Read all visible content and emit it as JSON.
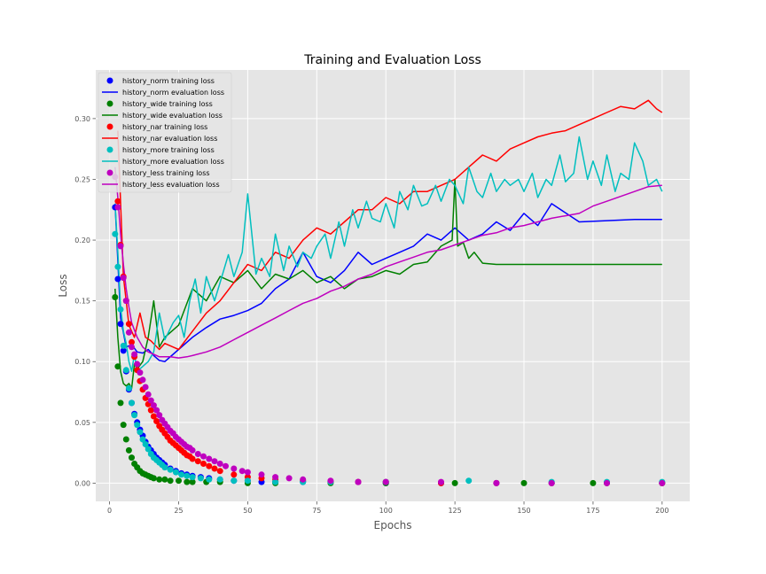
{
  "chart_data": {
    "type": "line",
    "title": "Training and Evaluation Loss",
    "xlabel": "Epochs",
    "ylabel": "Loss",
    "xlim": [
      -5,
      210
    ],
    "ylim": [
      -0.015,
      0.34
    ],
    "xticks": [
      0,
      25,
      50,
      75,
      100,
      125,
      150,
      175,
      200
    ],
    "yticks": [
      0.0,
      0.05,
      0.1,
      0.15,
      0.2,
      0.25,
      0.3
    ],
    "grid": true,
    "legend_position": "top-left",
    "colors": {
      "norm": "#0000ff",
      "wide": "#008000",
      "nar": "#ff0000",
      "more": "#00bfbf",
      "less": "#bf00bf",
      "background": "#e5e5e5",
      "grid": "#ffffff"
    },
    "legend": [
      {
        "label": "history_norm training loss",
        "kind": "marker",
        "color": "#0000ff"
      },
      {
        "label": "history_norm evaluation loss",
        "kind": "line",
        "color": "#0000ff"
      },
      {
        "label": "history_wide training loss",
        "kind": "marker",
        "color": "#008000"
      },
      {
        "label": "history_wide evaluation loss",
        "kind": "line",
        "color": "#008000"
      },
      {
        "label": "history_nar training loss",
        "kind": "marker",
        "color": "#ff0000"
      },
      {
        "label": "history_nar evaluation loss",
        "kind": "line",
        "color": "#ff0000"
      },
      {
        "label": "history_more training loss",
        "kind": "marker",
        "color": "#00bfbf"
      },
      {
        "label": "history_more evaluation loss",
        "kind": "line",
        "color": "#00bfbf"
      },
      {
        "label": "history_less training loss",
        "kind": "marker",
        "color": "#bf00bf"
      },
      {
        "label": "history_less evaluation loss",
        "kind": "line",
        "color": "#bf00bf"
      }
    ],
    "series": [
      {
        "name": "history_norm training loss",
        "kind": "scatter",
        "color": "#0000ff",
        "x": [
          2,
          3,
          4,
          5,
          6,
          7,
          8,
          9,
          10,
          11,
          12,
          13,
          14,
          15,
          16,
          17,
          18,
          19,
          20,
          22,
          24,
          26,
          28,
          30,
          33,
          36,
          40,
          45,
          50,
          55,
          60,
          70,
          80,
          90,
          100,
          120,
          140,
          160,
          180,
          200
        ],
        "y": [
          0.227,
          0.168,
          0.131,
          0.109,
          0.092,
          0.077,
          0.066,
          0.057,
          0.05,
          0.044,
          0.039,
          0.034,
          0.03,
          0.027,
          0.024,
          0.021,
          0.019,
          0.017,
          0.015,
          0.012,
          0.01,
          0.008,
          0.007,
          0.006,
          0.005,
          0.004,
          0.003,
          0.002,
          0.002,
          0.001,
          0.001,
          0.001,
          0.001,
          0.001,
          0.0,
          0.0,
          0.0,
          0.0,
          0.0,
          0.0
        ]
      },
      {
        "name": "history_norm evaluation loss",
        "kind": "line",
        "color": "#0000ff",
        "x": [
          2,
          4,
          6,
          8,
          10,
          12,
          14,
          16,
          18,
          20,
          25,
          30,
          35,
          40,
          45,
          50,
          55,
          60,
          65,
          70,
          75,
          80,
          85,
          90,
          95,
          100,
          105,
          110,
          115,
          120,
          125,
          130,
          135,
          140,
          145,
          150,
          155,
          160,
          170,
          180,
          190,
          200
        ],
        "y": [
          0.23,
          0.136,
          0.112,
          0.114,
          0.108,
          0.107,
          0.11,
          0.105,
          0.101,
          0.1,
          0.11,
          0.12,
          0.128,
          0.135,
          0.138,
          0.142,
          0.148,
          0.16,
          0.168,
          0.19,
          0.17,
          0.165,
          0.175,
          0.19,
          0.18,
          0.185,
          0.19,
          0.195,
          0.205,
          0.2,
          0.21,
          0.2,
          0.205,
          0.215,
          0.208,
          0.222,
          0.212,
          0.23,
          0.215,
          0.216,
          0.217,
          0.217
        ]
      },
      {
        "name": "history_wide training loss",
        "kind": "scatter",
        "color": "#008000",
        "x": [
          2,
          3,
          4,
          5,
          6,
          7,
          8,
          9,
          10,
          11,
          12,
          13,
          14,
          15,
          16,
          18,
          20,
          22,
          25,
          28,
          30,
          35,
          40,
          50,
          60,
          80,
          100,
          125,
          150,
          175,
          200
        ],
        "y": [
          0.153,
          0.096,
          0.066,
          0.048,
          0.036,
          0.027,
          0.021,
          0.016,
          0.013,
          0.01,
          0.008,
          0.007,
          0.006,
          0.005,
          0.004,
          0.003,
          0.003,
          0.002,
          0.002,
          0.001,
          0.001,
          0.001,
          0.001,
          0.0,
          0.0,
          0.0,
          0.0,
          0.0,
          0.0,
          0.0,
          0.0
        ]
      },
      {
        "name": "history_wide evaluation loss",
        "kind": "line",
        "color": "#008000",
        "x": [
          2,
          3,
          4,
          5,
          6,
          7,
          8,
          9,
          10,
          12,
          14,
          16,
          18,
          20,
          25,
          30,
          35,
          40,
          45,
          50,
          55,
          60,
          65,
          70,
          75,
          80,
          85,
          90,
          95,
          100,
          105,
          110,
          115,
          120,
          124,
          125,
          126,
          128,
          130,
          132,
          135,
          140,
          150,
          175,
          200
        ],
        "y": [
          0.16,
          0.12,
          0.092,
          0.082,
          0.08,
          0.082,
          0.078,
          0.098,
          0.094,
          0.1,
          0.12,
          0.15,
          0.112,
          0.12,
          0.13,
          0.16,
          0.15,
          0.17,
          0.165,
          0.175,
          0.16,
          0.172,
          0.168,
          0.175,
          0.165,
          0.17,
          0.16,
          0.168,
          0.17,
          0.175,
          0.172,
          0.18,
          0.182,
          0.195,
          0.2,
          0.25,
          0.195,
          0.198,
          0.185,
          0.19,
          0.181,
          0.18,
          0.18,
          0.18,
          0.18
        ]
      },
      {
        "name": "history_nar training loss",
        "kind": "scatter",
        "color": "#ff0000",
        "x": [
          3,
          4,
          5,
          6,
          7,
          8,
          9,
          10,
          11,
          12,
          13,
          14,
          15,
          16,
          17,
          18,
          19,
          20,
          21,
          22,
          23,
          24,
          25,
          26,
          27,
          28,
          29,
          30,
          32,
          34,
          36,
          38,
          40,
          45,
          50,
          55,
          60,
          70,
          80,
          90,
          100,
          120,
          140,
          160,
          180,
          200
        ],
        "y": [
          0.232,
          0.196,
          0.17,
          0.15,
          0.131,
          0.116,
          0.104,
          0.093,
          0.084,
          0.077,
          0.07,
          0.065,
          0.06,
          0.055,
          0.051,
          0.047,
          0.044,
          0.041,
          0.038,
          0.035,
          0.033,
          0.031,
          0.029,
          0.027,
          0.025,
          0.023,
          0.022,
          0.02,
          0.018,
          0.016,
          0.014,
          0.012,
          0.01,
          0.007,
          0.005,
          0.004,
          0.003,
          0.002,
          0.001,
          0.001,
          0.001,
          0.0,
          0.0,
          0.0,
          0.0,
          0.0
        ]
      },
      {
        "name": "history_nar evaluation loss",
        "kind": "line",
        "color": "#ff0000",
        "x": [
          3,
          5,
          7,
          9,
          11,
          13,
          15,
          18,
          20,
          23,
          25,
          30,
          35,
          40,
          45,
          50,
          55,
          60,
          65,
          70,
          75,
          80,
          85,
          90,
          95,
          100,
          105,
          110,
          115,
          120,
          125,
          130,
          135,
          140,
          145,
          150,
          155,
          160,
          165,
          170,
          175,
          180,
          185,
          190,
          195,
          198,
          200
        ],
        "y": [
          0.29,
          0.17,
          0.13,
          0.12,
          0.14,
          0.12,
          0.117,
          0.11,
          0.115,
          0.112,
          0.11,
          0.125,
          0.14,
          0.15,
          0.165,
          0.18,
          0.175,
          0.19,
          0.185,
          0.2,
          0.21,
          0.205,
          0.215,
          0.225,
          0.225,
          0.235,
          0.23,
          0.24,
          0.24,
          0.245,
          0.25,
          0.26,
          0.27,
          0.265,
          0.275,
          0.28,
          0.285,
          0.288,
          0.29,
          0.295,
          0.3,
          0.305,
          0.31,
          0.308,
          0.315,
          0.308,
          0.305
        ]
      },
      {
        "name": "history_more training loss",
        "kind": "scatter",
        "color": "#00bfbf",
        "x": [
          2,
          3,
          4,
          5,
          6,
          7,
          8,
          9,
          10,
          11,
          12,
          13,
          14,
          15,
          16,
          17,
          18,
          19,
          20,
          22,
          24,
          26,
          28,
          30,
          33,
          36,
          40,
          45,
          50,
          60,
          70,
          80,
          100,
          130,
          160,
          180,
          200
        ],
        "y": [
          0.205,
          0.178,
          0.143,
          0.113,
          0.093,
          0.078,
          0.066,
          0.056,
          0.048,
          0.042,
          0.036,
          0.032,
          0.028,
          0.024,
          0.021,
          0.019,
          0.017,
          0.015,
          0.013,
          0.011,
          0.009,
          0.007,
          0.006,
          0.005,
          0.004,
          0.003,
          0.003,
          0.002,
          0.002,
          0.001,
          0.001,
          0.001,
          0.001,
          0.002,
          0.001,
          0.001,
          0.001
        ]
      },
      {
        "name": "history_more evaluation loss",
        "kind": "line",
        "color": "#00bfbf",
        "x": [
          2,
          3,
          4,
          5,
          6,
          7,
          8,
          9,
          10,
          12,
          14,
          16,
          18,
          20,
          23,
          25,
          27,
          29,
          31,
          33,
          35,
          38,
          40,
          43,
          45,
          48,
          50,
          53,
          55,
          58,
          60,
          63,
          65,
          68,
          70,
          73,
          75,
          78,
          80,
          83,
          85,
          88,
          90,
          93,
          95,
          98,
          100,
          103,
          105,
          108,
          110,
          113,
          115,
          118,
          120,
          123,
          125,
          128,
          130,
          133,
          135,
          138,
          140,
          143,
          145,
          148,
          150,
          153,
          155,
          158,
          160,
          163,
          165,
          168,
          170,
          173,
          175,
          178,
          180,
          183,
          185,
          188,
          190,
          193,
          195,
          198,
          200
        ],
        "y": [
          0.23,
          0.19,
          0.145,
          0.125,
          0.115,
          0.1,
          0.092,
          0.106,
          0.092,
          0.096,
          0.1,
          0.108,
          0.14,
          0.118,
          0.132,
          0.138,
          0.12,
          0.15,
          0.168,
          0.14,
          0.17,
          0.15,
          0.165,
          0.188,
          0.17,
          0.19,
          0.238,
          0.172,
          0.185,
          0.17,
          0.205,
          0.175,
          0.195,
          0.178,
          0.19,
          0.185,
          0.195,
          0.205,
          0.185,
          0.215,
          0.195,
          0.225,
          0.21,
          0.232,
          0.218,
          0.215,
          0.23,
          0.21,
          0.24,
          0.225,
          0.245,
          0.228,
          0.23,
          0.245,
          0.232,
          0.25,
          0.245,
          0.23,
          0.26,
          0.24,
          0.235,
          0.255,
          0.24,
          0.25,
          0.245,
          0.25,
          0.24,
          0.255,
          0.235,
          0.25,
          0.245,
          0.27,
          0.248,
          0.255,
          0.285,
          0.25,
          0.265,
          0.245,
          0.27,
          0.24,
          0.255,
          0.25,
          0.28,
          0.265,
          0.245,
          0.25,
          0.24
        ]
      },
      {
        "name": "history_less training loss",
        "kind": "scatter",
        "color": "#bf00bf",
        "x": [
          2,
          3,
          4,
          5,
          6,
          7,
          8,
          9,
          10,
          11,
          12,
          13,
          14,
          15,
          16,
          17,
          18,
          19,
          20,
          21,
          22,
          23,
          24,
          25,
          26,
          27,
          28,
          29,
          30,
          32,
          34,
          36,
          38,
          40,
          42,
          45,
          48,
          50,
          55,
          60,
          65,
          70,
          80,
          90,
          100,
          120,
          140,
          160,
          180,
          200
        ],
        "y": [
          0.252,
          0.227,
          0.195,
          0.169,
          0.15,
          0.124,
          0.112,
          0.106,
          0.098,
          0.091,
          0.085,
          0.079,
          0.073,
          0.068,
          0.064,
          0.06,
          0.056,
          0.052,
          0.049,
          0.046,
          0.043,
          0.041,
          0.038,
          0.036,
          0.034,
          0.032,
          0.03,
          0.029,
          0.027,
          0.024,
          0.022,
          0.02,
          0.018,
          0.016,
          0.014,
          0.012,
          0.01,
          0.009,
          0.007,
          0.005,
          0.004,
          0.003,
          0.002,
          0.001,
          0.001,
          0.001,
          0.0,
          0.0,
          0.0,
          0.0
        ]
      },
      {
        "name": "history_less evaluation loss",
        "kind": "line",
        "color": "#bf00bf",
        "x": [
          2,
          3,
          4,
          5,
          6,
          7,
          8,
          10,
          12,
          14,
          16,
          18,
          20,
          22,
          25,
          28,
          30,
          35,
          40,
          45,
          50,
          55,
          60,
          65,
          70,
          75,
          80,
          85,
          90,
          95,
          100,
          105,
          110,
          115,
          120,
          125,
          130,
          135,
          140,
          145,
          150,
          155,
          160,
          165,
          170,
          175,
          180,
          185,
          190,
          195,
          200
        ],
        "y": [
          0.26,
          0.235,
          0.205,
          0.18,
          0.16,
          0.145,
          0.132,
          0.12,
          0.112,
          0.108,
          0.106,
          0.104,
          0.104,
          0.104,
          0.103,
          0.104,
          0.105,
          0.108,
          0.112,
          0.118,
          0.124,
          0.13,
          0.136,
          0.142,
          0.148,
          0.152,
          0.158,
          0.162,
          0.168,
          0.172,
          0.178,
          0.182,
          0.186,
          0.19,
          0.192,
          0.196,
          0.2,
          0.204,
          0.206,
          0.21,
          0.212,
          0.215,
          0.218,
          0.22,
          0.222,
          0.228,
          0.232,
          0.236,
          0.24,
          0.244,
          0.245
        ]
      }
    ]
  }
}
